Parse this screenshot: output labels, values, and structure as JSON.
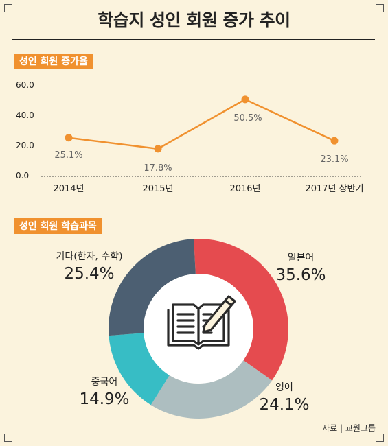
{
  "title": "학습지 성인 회원 증가 추이",
  "source": "자료 | 교원그룹",
  "chart_data": [
    {
      "type": "line",
      "title": "성인 회원 증가율",
      "categories": [
        "2014년",
        "2015년",
        "2016년",
        "2017년 상반기"
      ],
      "values": [
        25.1,
        17.8,
        50.5,
        23.1
      ],
      "value_labels": [
        "25.1%",
        "17.8%",
        "50.5%",
        "23.1%"
      ],
      "yticks": [
        "0.0",
        "20.0",
        "40.0",
        "60.0"
      ],
      "ylim": [
        0,
        60
      ],
      "line_color": "#f0912f"
    },
    {
      "type": "pie",
      "title": "성인 회원 학습과목",
      "slices": [
        {
          "label": "일본어",
          "value": 35.6,
          "value_label": "35.6%",
          "color": "#e54b4f"
        },
        {
          "label": "영어",
          "value": 24.1,
          "value_label": "24.1%",
          "color": "#adbec0"
        },
        {
          "label": "중국어",
          "value": 14.9,
          "value_label": "14.9%",
          "color": "#37bdc5"
        },
        {
          "label": "기타(한자, 수학)",
          "value": 25.4,
          "value_label": "25.4%",
          "color": "#4c5f72"
        }
      ],
      "center_icon": "book-pencil-icon"
    }
  ]
}
